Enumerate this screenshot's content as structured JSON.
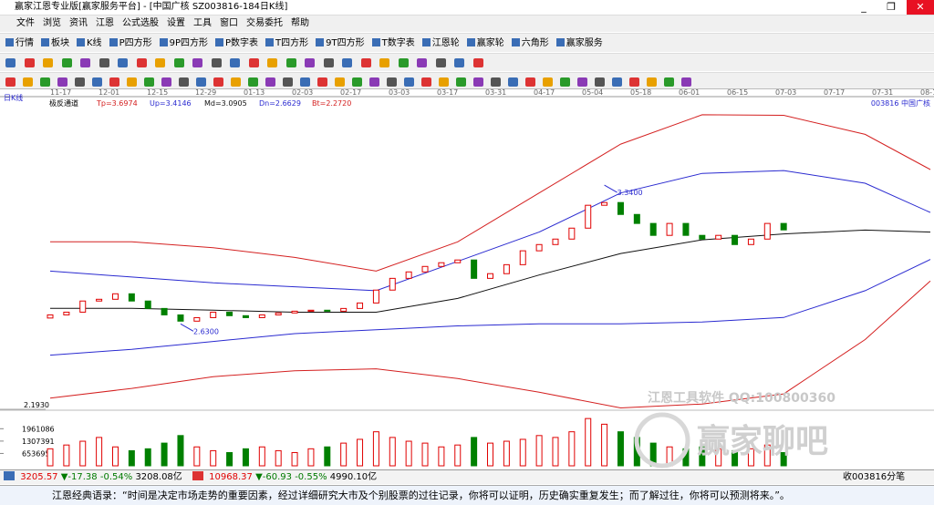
{
  "window": {
    "title": "赢家江恩专业版[赢家服务平台] - [中国广核  SZ003816-184日K线]",
    "menu": [
      "文件",
      "浏览",
      "资讯",
      "江恩",
      "公式选股",
      "设置",
      "工具",
      "窗口",
      "交易委托",
      "帮助"
    ],
    "toolbar": [
      "行情",
      "板块",
      "K线",
      "P四方形",
      "9P四方形",
      "P数字表",
      "T四方形",
      "9T四方形",
      "T数字表",
      "江恩轮",
      "赢家轮",
      "六角形",
      "赢家服务"
    ]
  },
  "chart_data": {
    "type": "candlestick",
    "period_label": "日K线",
    "stock_label": "003816 中国广核",
    "dates": [
      "11-17",
      "12-01",
      "12-15",
      "12-29",
      "01-13",
      "02-03",
      "02-17",
      "03-03",
      "03-17",
      "03-31",
      "04-17",
      "05-04",
      "05-18",
      "06-01",
      "06-15",
      "07-03",
      "07-17",
      "07-31",
      "08-14"
    ],
    "indicator": {
      "name": "极反通道",
      "items": [
        "Tp=3.6974",
        "Up=3.4146",
        "Md=3.0905",
        "Dn=2.6629",
        "Bt=2.2720"
      ]
    },
    "open": [
      2.66,
      2.676,
      2.69,
      2.747,
      2.756,
      2.784,
      2.747,
      2.709,
      2.676,
      2.644,
      2.662,
      2.69,
      2.672,
      2.662,
      2.676,
      2.686,
      2.695,
      2.7,
      2.695,
      2.709,
      2.737,
      2.803,
      2.863,
      2.896,
      2.924,
      2.943,
      2.957,
      2.863,
      2.887,
      2.933,
      3.004,
      3.036,
      3.064,
      3.12,
      3.237,
      3.251,
      3.19,
      3.144,
      3.083,
      3.144,
      3.083,
      3.064,
      3.083,
      3.036,
      3.064,
      3.144
    ],
    "close": [
      2.676,
      2.69,
      2.747,
      2.756,
      2.784,
      2.747,
      2.709,
      2.676,
      2.644,
      2.662,
      2.69,
      2.672,
      2.662,
      2.676,
      2.686,
      2.695,
      2.7,
      2.695,
      2.709,
      2.737,
      2.803,
      2.863,
      2.896,
      2.924,
      2.943,
      2.957,
      2.863,
      2.887,
      2.933,
      3.004,
      3.036,
      3.064,
      3.12,
      3.237,
      3.251,
      3.19,
      3.144,
      3.083,
      3.144,
      3.083,
      3.064,
      3.083,
      3.036,
      3.064,
      3.144,
      3.111
    ],
    "ylim": [
      2.193,
      3.737
    ],
    "yticks": [
      {
        "value": 2.193,
        "label": "2.1930"
      }
    ],
    "annotations": [
      {
        "index": 34,
        "value": 3.34,
        "label": "3.3400"
      },
      {
        "index": 8,
        "value": 2.63,
        "label": "2.6300"
      }
    ],
    "bands": {
      "x_index": [
        0,
        5,
        10,
        15,
        20,
        25,
        30,
        35,
        40,
        45,
        50,
        54
      ],
      "series": [
        {
          "color": "#d42020",
          "values": [
            3.05,
            3.05,
            3.02,
            2.97,
            2.9,
            3.05,
            3.3,
            3.55,
            3.7,
            3.6974,
            3.6,
            3.42
          ]
        },
        {
          "color": "#2a2ad0",
          "values": [
            2.9,
            2.87,
            2.84,
            2.82,
            2.8,
            2.95,
            3.1,
            3.3,
            3.4,
            3.4146,
            3.35,
            3.2
          ]
        },
        {
          "color": "#111111",
          "values": [
            2.71,
            2.71,
            2.7,
            2.69,
            2.69,
            2.76,
            2.88,
            2.99,
            3.06,
            3.0905,
            3.11,
            3.1
          ]
        },
        {
          "color": "#2a2ad0",
          "values": [
            2.47,
            2.5,
            2.54,
            2.58,
            2.6,
            2.62,
            2.63,
            2.63,
            2.64,
            2.6629,
            2.8,
            2.96
          ]
        },
        {
          "color": "#d42020",
          "values": [
            2.25,
            2.3,
            2.36,
            2.39,
            2.4,
            2.35,
            2.28,
            2.2,
            2.22,
            2.272,
            2.55,
            2.85
          ]
        }
      ]
    },
    "up_color": "#e00000",
    "down_color": "#008000",
    "volume": {
      "values": [
        900000,
        1100000,
        1300000,
        1500000,
        1000000,
        800000,
        900000,
        1200000,
        1600000,
        1000000,
        800000,
        700000,
        900000,
        1000000,
        800000,
        700000,
        900000,
        1000000,
        1200000,
        1400000,
        1800000,
        1500000,
        1300000,
        1200000,
        1000000,
        1100000,
        1500000,
        1200000,
        1300000,
        1400000,
        1600000,
        1500000,
        1800000,
        2500000,
        2200000,
        1800000,
        1500000,
        1200000,
        1000000,
        900000,
        1000000,
        900000,
        800000,
        900000,
        1100000,
        700000
      ],
      "ylim": [
        0,
        2700000
      ],
      "yticks": [
        653695,
        1307391,
        1961086
      ]
    }
  },
  "status": {
    "index1": {
      "value": "3205.57",
      "change": "▼-17.38",
      "percent": "-0.54%",
      "amount": "3208.08亿"
    },
    "index2": {
      "value": "10968.37",
      "change": "▼-60.93",
      "percent": "-0.55%",
      "amount": "4990.10亿"
    },
    "right": "收003816分笔"
  },
  "quote": "江恩经典语录：“时间是决定市场走势的重要因素，经过详细研究大市及个别股票的过往记录，你将可以证明，历史确实重复发生；而了解过往，你将可以预测将来。”。",
  "watermark": [
    "江恩工具软件 QQ:100800360",
    "赢家聊吧"
  ]
}
